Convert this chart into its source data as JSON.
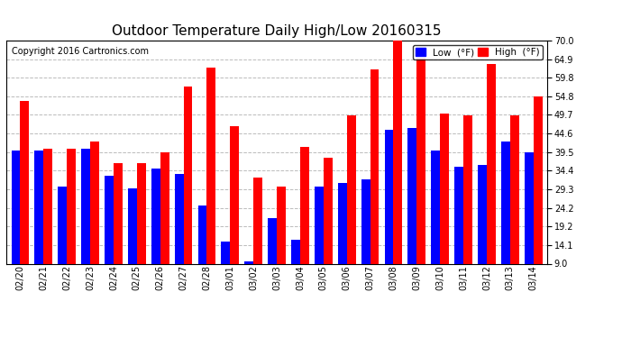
{
  "title": "Outdoor Temperature Daily High/Low 20160315",
  "copyright": "Copyright 2016 Cartronics.com",
  "legend_low": "Low  (°F)",
  "legend_high": "High  (°F)",
  "dates": [
    "02/20",
    "02/21",
    "02/22",
    "02/23",
    "02/24",
    "02/25",
    "02/26",
    "02/27",
    "02/28",
    "03/01",
    "03/02",
    "03/03",
    "03/04",
    "03/05",
    "03/06",
    "03/07",
    "03/08",
    "03/09",
    "03/10",
    "03/11",
    "03/12",
    "03/13",
    "03/14"
  ],
  "low": [
    40.0,
    40.0,
    30.0,
    40.5,
    33.0,
    29.5,
    35.0,
    33.5,
    25.0,
    15.0,
    9.5,
    21.5,
    15.5,
    30.0,
    31.0,
    32.0,
    45.5,
    46.0,
    40.0,
    35.5,
    36.0,
    42.5,
    39.5
  ],
  "high": [
    53.5,
    40.5,
    40.5,
    42.5,
    36.5,
    36.5,
    39.5,
    57.5,
    62.5,
    46.5,
    32.5,
    30.0,
    41.0,
    38.0,
    49.5,
    62.0,
    70.0,
    65.0,
    50.0,
    49.5,
    63.5,
    49.5,
    54.8
  ],
  "ylim_min": 9.0,
  "ylim_max": 70.0,
  "yticks": [
    9.0,
    14.1,
    19.2,
    24.2,
    29.3,
    34.4,
    39.5,
    44.6,
    49.7,
    54.8,
    59.8,
    64.9,
    70.0
  ],
  "low_color": "#0000ff",
  "high_color": "#ff0000",
  "bg_color": "#ffffff",
  "title_fontsize": 11,
  "copyright_fontsize": 7,
  "bar_width": 0.38,
  "grid_color": "#bbbbbb"
}
